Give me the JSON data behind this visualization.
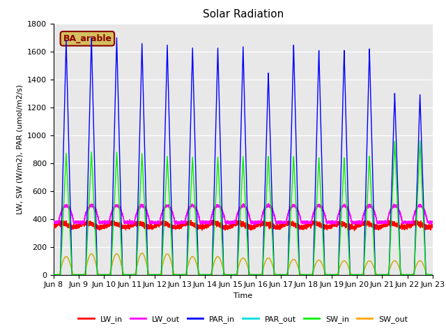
{
  "title": "Solar Radiation",
  "ylabel": "LW, SW (W/m2), PAR (umol/m2/s)",
  "xlabel": "Time",
  "ylim": [
    0,
    1800
  ],
  "yticks": [
    0,
    200,
    400,
    600,
    800,
    1000,
    1200,
    1400,
    1600,
    1800
  ],
  "xtick_labels": [
    "Jun 8",
    "Jun 9",
    "Jun 10",
    "Jun 11",
    "Jun 12",
    "Jun 13",
    "Jun 14",
    "Jun 15",
    "Jun 16",
    "Jun 17",
    "Jun 18",
    "Jun 19",
    "Jun 20",
    "Jun 21",
    "Jun 22",
    "Jun 23"
  ],
  "annotation_text": "BA_arable",
  "annotation_bg": "#d4c060",
  "annotation_fg": "#8b0000",
  "colors": {
    "LW_in": "#ff0000",
    "LW_out": "#ff00ff",
    "PAR_in": "#0000ff",
    "PAR_out": "#00dddd",
    "SW_in": "#00ee00",
    "SW_out": "#ffa500"
  },
  "background_color": "#e8e8e8",
  "grid_color": "#ffffff",
  "title_fontsize": 11,
  "axis_fontsize": 8,
  "legend_fontsize": 8,
  "par_in_peaks": [
    1680,
    1700,
    1700,
    1660,
    1650,
    1630,
    1630,
    1640,
    1450,
    1650,
    1610,
    1610,
    1620,
    1300,
    1290
  ],
  "sw_in_peaks": [
    870,
    880,
    880,
    870,
    850,
    845,
    845,
    850,
    850,
    850,
    840,
    840,
    850,
    955,
    960
  ],
  "sw_out_peaks": [
    130,
    150,
    150,
    155,
    150,
    130,
    130,
    120,
    120,
    110,
    105,
    100,
    100,
    100,
    100
  ],
  "par_out_peaks": [
    130,
    150,
    150,
    155,
    150,
    130,
    130,
    120,
    120,
    110,
    105,
    100,
    100,
    100,
    100
  ],
  "lw_in_base": 355,
  "lw_out_base": 375
}
